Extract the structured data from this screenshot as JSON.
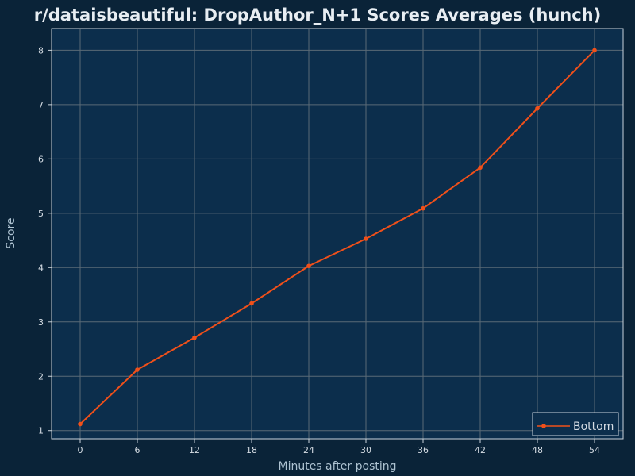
{
  "chart_data": {
    "type": "line",
    "title": "r/dataisbeautiful: DropAuthor_N+1 Scores Averages (hunch)",
    "xlabel": "Minutes after posting",
    "ylabel": "Score",
    "x": [
      0,
      6,
      12,
      18,
      24,
      30,
      36,
      42,
      48,
      54
    ],
    "xlim": [
      -3,
      57
    ],
    "ylim": [
      0.85,
      8.4
    ],
    "xticks": [
      "0",
      "6",
      "12",
      "18",
      "24",
      "30",
      "36",
      "42",
      "48",
      "54"
    ],
    "yticks": [
      "1",
      "2",
      "3",
      "4",
      "5",
      "6",
      "7",
      "8"
    ],
    "grid": true,
    "legend_position": "bottom-right",
    "series": [
      {
        "name": "Bottom",
        "color": "#f0501a",
        "values": [
          1.12,
          2.12,
          2.71,
          3.34,
          4.03,
          4.53,
          5.09,
          5.84,
          6.93,
          8.0
        ]
      }
    ]
  },
  "colors": {
    "page_background": "#0a2338",
    "plot_background": "#0c2e4c",
    "grid": "#5a6a76",
    "frame": "#c9d3db"
  }
}
